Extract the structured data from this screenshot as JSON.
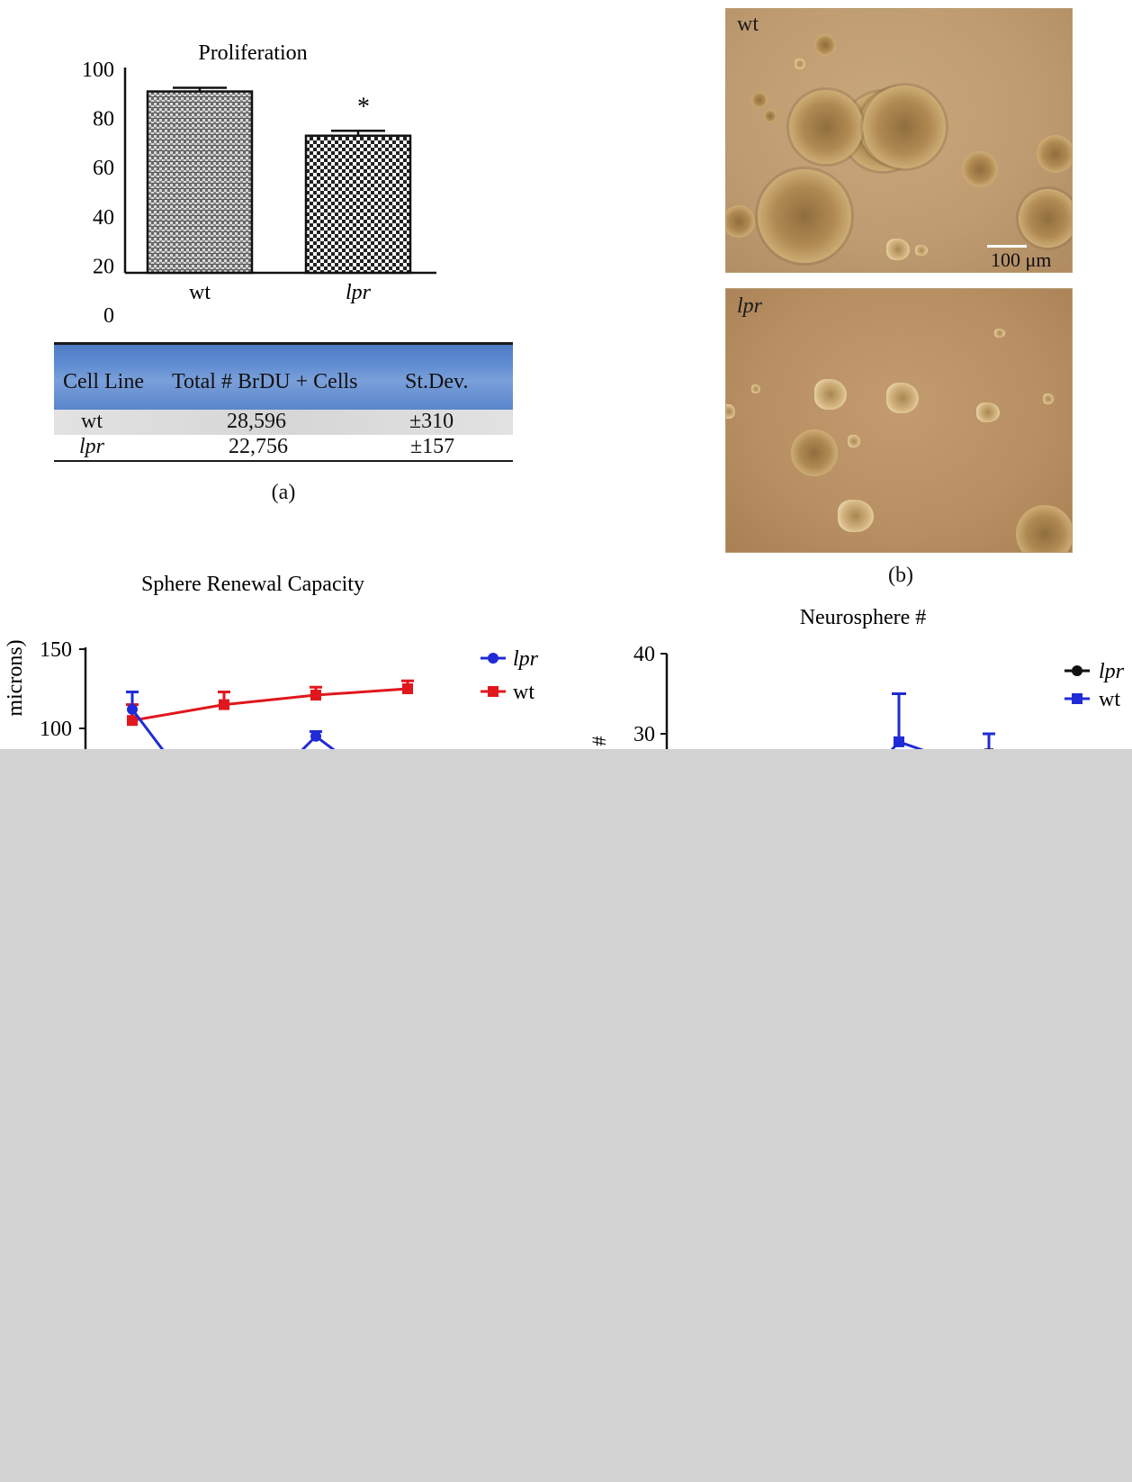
{
  "panel_a": {
    "label": "(a)",
    "table": {
      "headers": [
        "Cell Line",
        "Total # BrDU + Cells",
        "St.Dev."
      ],
      "rows": [
        [
          "wt",
          "28,596",
          "±310"
        ],
        [
          "lpr",
          "22,756",
          "±157"
        ]
      ]
    }
  },
  "panel_b": {
    "label": "(b)",
    "image_top_label": "wt",
    "image_bottom_label": "lpr",
    "scale_bar": "100 μm"
  },
  "chart_data": [
    {
      "type": "bar",
      "title": "Proliferation",
      "categories": [
        "wt",
        "lpr"
      ],
      "values": [
        91,
        73
      ],
      "errors": [
        1.5,
        2
      ],
      "significance": [
        "",
        "*"
      ],
      "y_ticks": [
        "100",
        "80",
        "60",
        "40",
        "20",
        "0"
      ],
      "ylim": [
        0,
        100
      ]
    },
    {
      "type": "line",
      "title": "Sphere Renewal Capacity",
      "ylabel": "microns)",
      "y_ticks": [
        "150",
        "100"
      ],
      "ylim_visible": [
        100,
        150
      ],
      "legend": "top-right",
      "series": [
        {
          "name": "lpr",
          "color": "#1f2bd6",
          "marker": "circle",
          "points": [
            [
              1,
              112
            ],
            [
              3,
              95
            ]
          ],
          "errors": [
            11,
            3
          ]
        },
        {
          "name": "wt",
          "color": "#e0171d",
          "marker": "square",
          "points": [
            [
              1,
              105
            ],
            [
              2,
              115
            ],
            [
              3,
              121
            ],
            [
              4,
              125
            ]
          ],
          "errors": [
            10,
            8,
            5,
            5
          ]
        }
      ]
    },
    {
      "type": "line",
      "title": "Neurosphere #",
      "ylabel": "#",
      "y_ticks": [
        "40",
        "30"
      ],
      "legend": "top-right",
      "series": [
        {
          "name": "lpr",
          "color": "#111111",
          "marker": "circle",
          "points": [
            [
              3,
              28
            ]
          ],
          "errors": [
            2
          ]
        },
        {
          "name": "wt",
          "color": "#1f2bd6",
          "marker": "square",
          "points": [
            [
              2,
              29
            ]
          ],
          "errors": [
            6
          ]
        }
      ]
    }
  ]
}
